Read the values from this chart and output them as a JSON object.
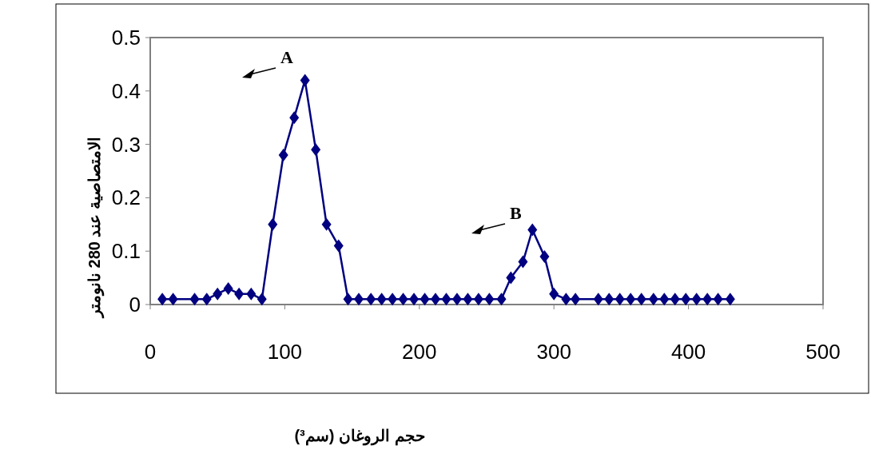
{
  "chart_data": {
    "type": "line",
    "xlabel": "حجم الروغان (سم³)",
    "ylabel": "الامتصاصية عند 280 نانومتر",
    "x": [
      9,
      17,
      33,
      42,
      50,
      58,
      66,
      75,
      83,
      91,
      99,
      107,
      115,
      123,
      131,
      140,
      147,
      155,
      164,
      172,
      180,
      188,
      196,
      204,
      212,
      220,
      228,
      236,
      244,
      252,
      261,
      268,
      277,
      284,
      293,
      300,
      309,
      316,
      333,
      341,
      349,
      357,
      365,
      374,
      382,
      390,
      398,
      406,
      414,
      422,
      431
    ],
    "series": [
      {
        "color": "#000080",
        "values": [
          0.01,
          0.01,
          0.01,
          0.01,
          0.02,
          0.03,
          0.02,
          0.02,
          0.01,
          0.15,
          0.28,
          0.35,
          0.42,
          0.29,
          0.15,
          0.11,
          0.01,
          0.01,
          0.01,
          0.01,
          0.01,
          0.01,
          0.01,
          0.01,
          0.01,
          0.01,
          0.01,
          0.01,
          0.01,
          0.01,
          0.01,
          0.05,
          0.08,
          0.14,
          0.09,
          0.02,
          0.01,
          0.01,
          0.01,
          0.01,
          0.01,
          0.01,
          0.01,
          0.01,
          0.01,
          0.01,
          0.01,
          0.01,
          0.01,
          0.01,
          0.01
        ]
      }
    ],
    "xlim": [
      0,
      500
    ],
    "xticks": [
      0,
      100,
      200,
      300,
      400,
      500
    ],
    "ylim": [
      0,
      0.5
    ],
    "yticks": [
      0,
      0.1,
      0.2,
      0.3,
      0.4,
      0.5
    ],
    "grid": false,
    "marker": "diamond",
    "line_style": "solid",
    "annotations": [
      "A",
      "B"
    ]
  }
}
